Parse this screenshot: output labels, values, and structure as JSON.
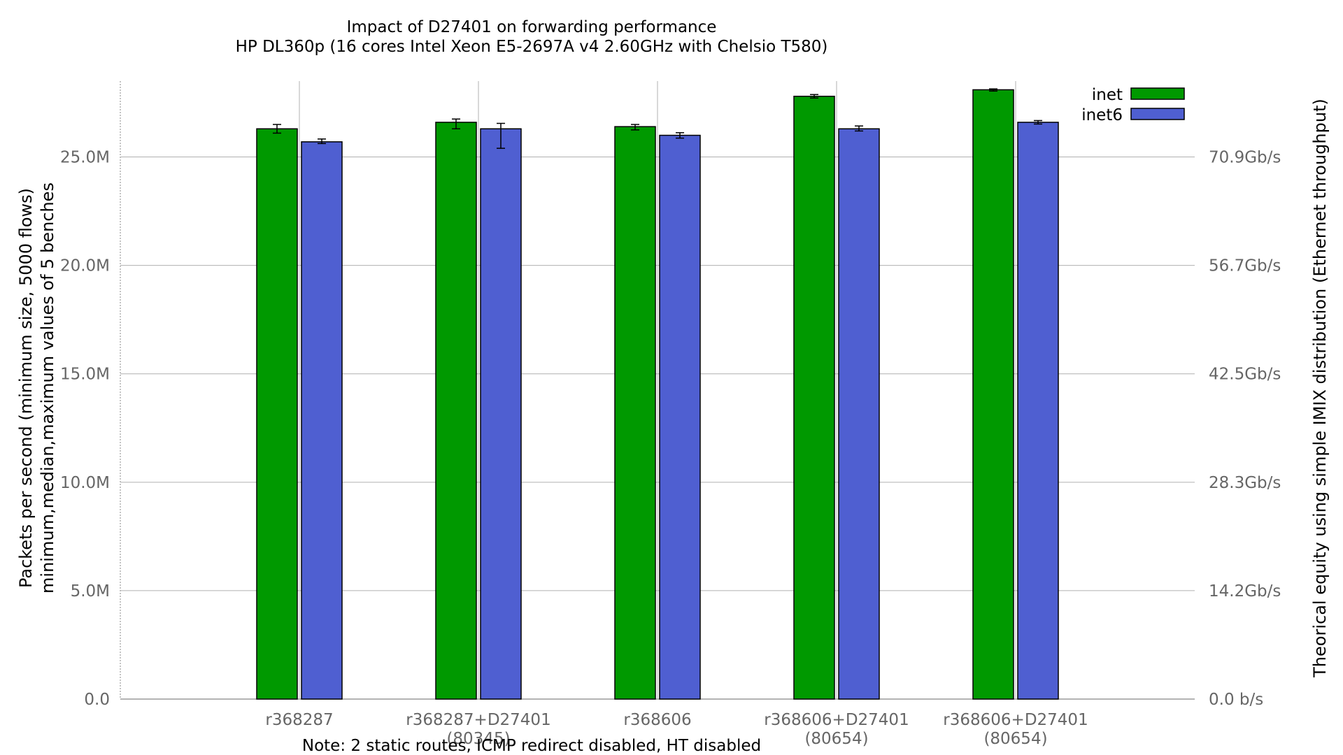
{
  "chart_data": {
    "type": "bar",
    "title": "Impact of D27401 on forwarding performance",
    "subtitle": "HP DL360p (16 cores Intel Xeon E5-2697A v4 2.60GHz with Chelsio T580)",
    "note": "Note: 2 static routes, ICMP redirect disabled, HT disabled",
    "ylabel": "Packets per second (minimum size, 5000 flows)",
    "ylabel2": "minimum,median,maximum values of 5 benches",
    "y2label": "Theorical equity using simple IMIX distribution (Ethernet throughput)",
    "ylim": [
      0,
      28.5
    ],
    "yticks": [
      0,
      5,
      10,
      15,
      20,
      25
    ],
    "ytick_labels": [
      "0.0",
      "5.0M",
      "10.0M",
      "15.0M",
      "20.0M",
      "25.0M"
    ],
    "y2tick_labels": [
      "0.0 b/s",
      "14.2Gb/s",
      "28.3Gb/s",
      "42.5Gb/s",
      "56.7Gb/s",
      "70.9Gb/s"
    ],
    "grid": true,
    "legend_position": "top-right",
    "categories": [
      [
        "r368287"
      ],
      [
        "r368287+D27401",
        "(80345)"
      ],
      [
        "r368606"
      ],
      [
        "r368606+D27401",
        "(80654)"
      ],
      [
        "r368606+D27401",
        "(80654)"
      ]
    ],
    "series": [
      {
        "name": "inet",
        "color": "#009900",
        "values": [
          26.3,
          26.6,
          26.4,
          27.8,
          28.1
        ],
        "min": [
          26.1,
          26.3,
          26.25,
          27.72,
          28.04
        ],
        "max": [
          26.5,
          26.75,
          26.5,
          27.88,
          28.14
        ]
      },
      {
        "name": "inet6",
        "color": "#4f5fd1",
        "values": [
          25.7,
          26.3,
          26.0,
          26.3,
          26.6
        ],
        "min": [
          25.62,
          25.4,
          25.87,
          26.2,
          26.52
        ],
        "max": [
          25.83,
          26.55,
          26.12,
          26.43,
          26.68
        ]
      }
    ]
  }
}
